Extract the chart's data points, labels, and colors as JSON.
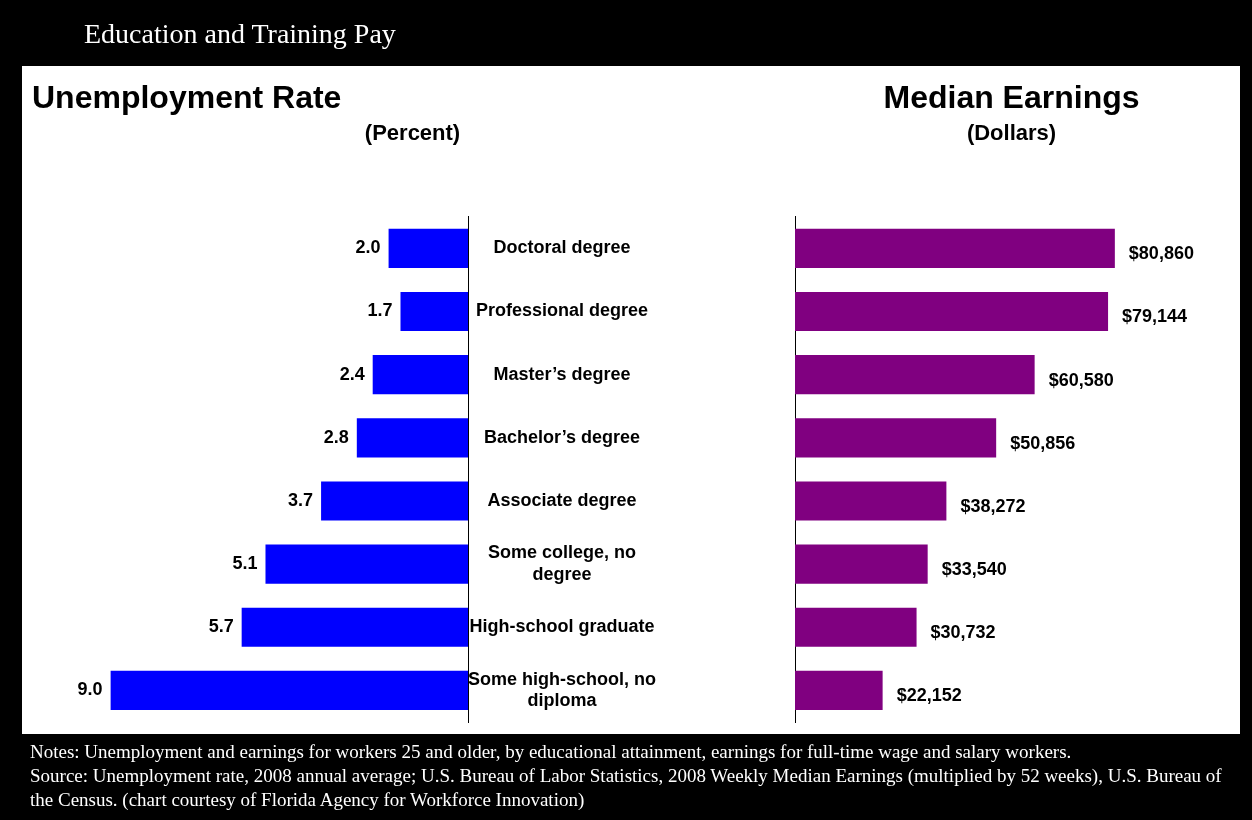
{
  "chart_data": [
    {
      "type": "bar",
      "orientation": "horizontal",
      "title": "Unemployment Rate",
      "subtitle": "(Percent)",
      "categories": [
        "Doctoral degree",
        "Professional degree",
        "Master’s degree",
        "Bachelor’s degree",
        "Associate degree",
        "Some college, no degree",
        "High-school graduate",
        "Some high-school, no diploma"
      ],
      "values": [
        2.0,
        1.7,
        2.4,
        2.8,
        3.7,
        5.1,
        5.7,
        9.0
      ],
      "value_labels": [
        "2.0",
        "1.7",
        "2.4",
        "2.8",
        "3.7",
        "5.1",
        "5.7",
        "9.0"
      ],
      "color": "#0000ff"
    },
    {
      "type": "bar",
      "orientation": "horizontal",
      "title": "Median Earnings",
      "subtitle": "(Dollars)",
      "categories": [
        null,
        null,
        null,
        null,
        null,
        null,
        null,
        null
      ],
      "values": [
        80860,
        79144,
        60580,
        50856,
        38272,
        33540,
        30732,
        22152
      ],
      "value_labels": [
        "$80,860",
        "$79,144",
        "$60,580",
        "$50,856",
        "$38,272",
        "$33,540",
        "$30,732",
        "$22,152"
      ],
      "color": "#800080"
    },
    {
      "type": "other",
      "title": "Education and Training Pay",
      "annotations": [
        "Notes: Unemployment and earnings for workers 25 and older, by educational attainment, earnings for full-time wage and salary workers.",
        "Source: Unemployment rate, 2008 annual average; U.S. Bureau of Labor Statistics, 2008 Weekly Median Earnings (multiplied by 52 weeks), U.S. Bureau of the Census. (chart courtesy of Florida Agency for Workforce Innovation)"
      ]
    }
  ]
}
